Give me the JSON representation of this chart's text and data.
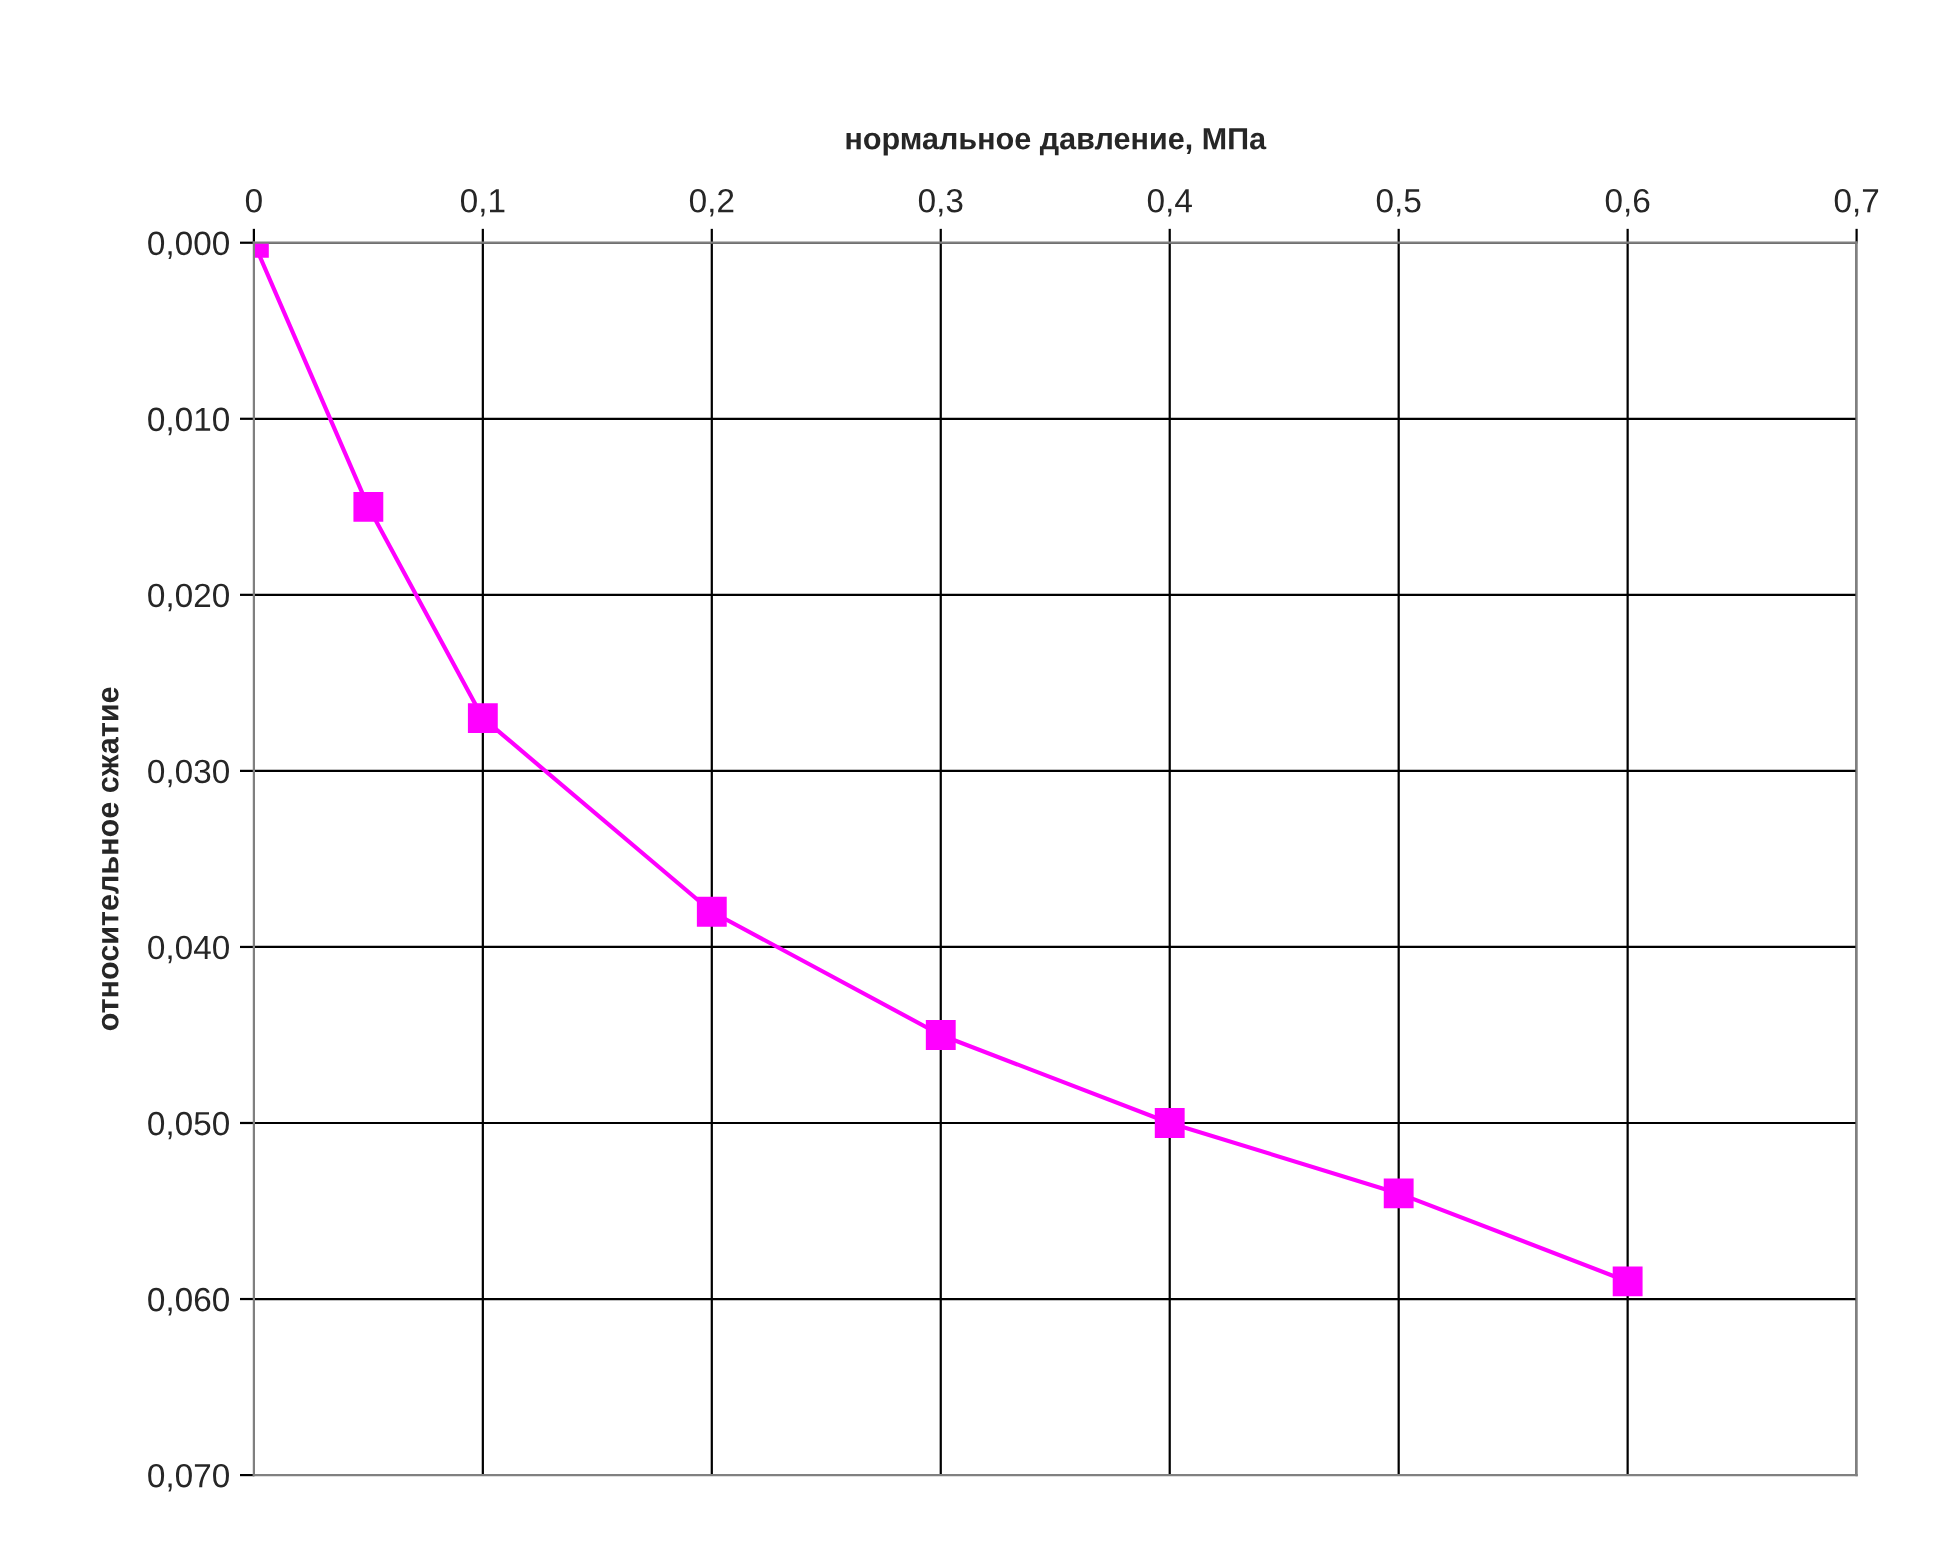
{
  "chart_data": {
    "type": "line",
    "xlabel": "нормальное давление, МПа",
    "ylabel": "относительное сжатие",
    "x": [
      0,
      0.05,
      0.1,
      0.2,
      0.3,
      0.4,
      0.5,
      0.6
    ],
    "series": [
      {
        "color": "#ff00ff",
        "values": [
          0,
          0.015,
          0.027,
          0.038,
          0.045,
          0.05,
          0.054,
          0.059
        ]
      }
    ],
    "xlim": [
      0,
      0.7
    ],
    "xticks": [
      0,
      {
        "value": 0.1,
        "label": "0,1"
      },
      {
        "value": 0.2,
        "label": "0,2"
      },
      {
        "value": 0.3,
        "label": "0,3"
      },
      {
        "value": 0.4,
        "label": "0,4"
      },
      {
        "value": 0.5,
        "label": "0,5"
      },
      {
        "value": 0.6,
        "label": "0,6"
      },
      {
        "value": 0.7,
        "label": "0,7"
      }
    ],
    "ylim": [
      0.07,
      0
    ],
    "yticks": [
      {
        "value": 0,
        "label": "0,000"
      },
      {
        "value": 0.01,
        "label": "0,010"
      },
      {
        "value": 0.02,
        "label": "0,020"
      },
      {
        "value": 0.03,
        "label": "0,030"
      },
      {
        "value": 0.04,
        "label": "0,040"
      },
      {
        "value": 0.05,
        "label": "0,050"
      },
      {
        "value": 0.06,
        "label": "0,060"
      },
      {
        "value": 0.07,
        "label": "0,070"
      }
    ],
    "grid": true,
    "marker": "square",
    "line_style": "solid",
    "legend": false
  }
}
